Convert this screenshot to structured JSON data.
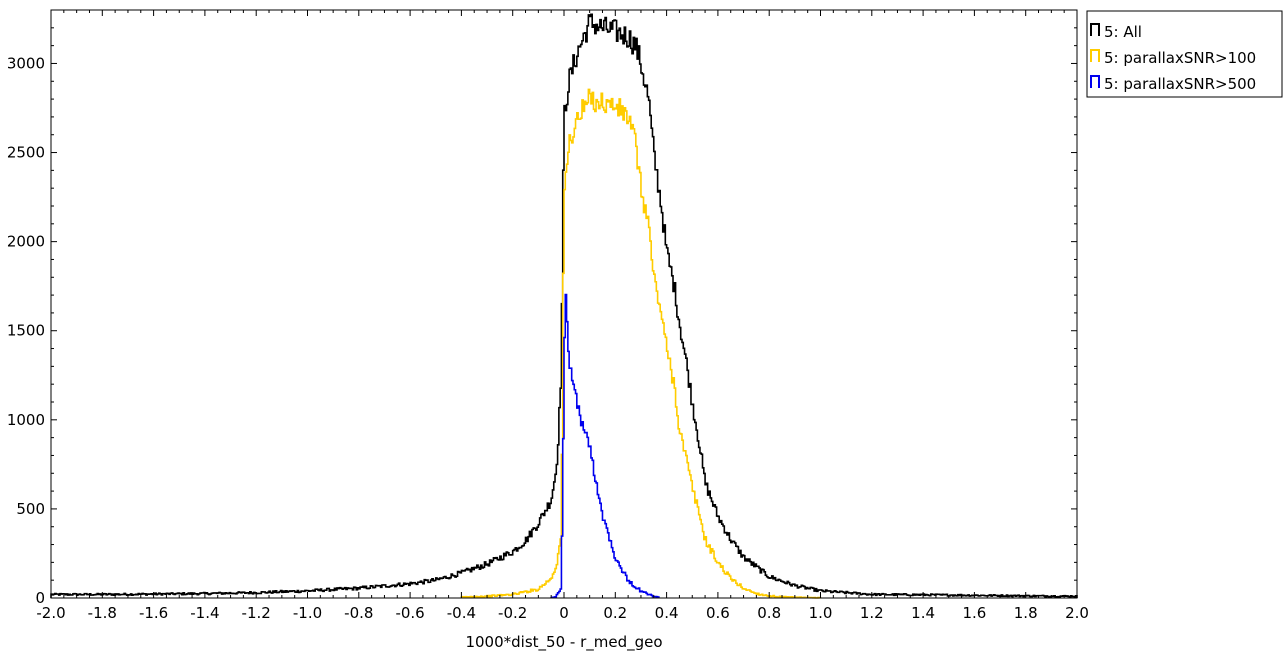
{
  "chart_data": {
    "type": "histogram",
    "xlabel": "1000*dist_50 - r_med_geo",
    "ylabel": "",
    "xlim": [
      -2.0,
      2.0
    ],
    "ylim": [
      0,
      3300
    ],
    "xticks": [
      -2.0,
      -1.8,
      -1.6,
      -1.4,
      -1.2,
      -1.0,
      -0.8,
      -0.6,
      -0.4,
      -0.2,
      0,
      0.2,
      0.4,
      0.6,
      0.8,
      1.0,
      1.2,
      1.4,
      1.6,
      1.8,
      2.0
    ],
    "xtick_labels": [
      "-2.0",
      "-1.8",
      "-1.6",
      "-1.4",
      "-1.2",
      "-1.0",
      "-0.8",
      "-0.6",
      "-0.4",
      "-0.2",
      "0",
      "0.2",
      "0.4",
      "0.6",
      "0.8",
      "1.0",
      "1.2",
      "1.4",
      "1.6",
      "1.8",
      "2.0"
    ],
    "yticks": [
      0,
      500,
      1000,
      1500,
      2000,
      2500,
      3000
    ],
    "ytick_labels": [
      "0",
      "500",
      "1000",
      "1500",
      "2000",
      "2500",
      "3000"
    ],
    "grid": false,
    "legend_position": "outside-top-right",
    "series": [
      {
        "name": "5: All",
        "color": "#000000",
        "x": [
          -2.0,
          -1.8,
          -1.6,
          -1.4,
          -1.2,
          -1.0,
          -0.8,
          -0.6,
          -0.5,
          -0.4,
          -0.3,
          -0.2,
          -0.15,
          -0.1,
          -0.05,
          -0.03,
          -0.02,
          -0.01,
          0.0,
          0.02,
          0.05,
          0.1,
          0.15,
          0.2,
          0.25,
          0.28,
          0.3,
          0.33,
          0.35,
          0.38,
          0.4,
          0.43,
          0.45,
          0.48,
          0.5,
          0.53,
          0.55,
          0.6,
          0.65,
          0.7,
          0.8,
          0.9,
          1.0,
          1.1,
          1.2,
          1.4,
          1.6,
          1.8,
          2.0
        ],
        "y": [
          20,
          20,
          22,
          25,
          30,
          40,
          55,
          80,
          100,
          140,
          190,
          260,
          320,
          420,
          550,
          720,
          950,
          1300,
          2700,
          2900,
          3050,
          3230,
          3200,
          3180,
          3150,
          3100,
          3000,
          2800,
          2500,
          2200,
          1950,
          1750,
          1550,
          1300,
          1100,
          850,
          650,
          460,
          330,
          230,
          120,
          70,
          40,
          30,
          20,
          18,
          15,
          12,
          10
        ]
      },
      {
        "name": "5: parallaxSNR>100",
        "color": "#ffcc00",
        "x": [
          -0.4,
          -0.3,
          -0.2,
          -0.1,
          -0.05,
          -0.03,
          -0.01,
          0.0,
          0.02,
          0.05,
          0.1,
          0.15,
          0.2,
          0.25,
          0.28,
          0.3,
          0.33,
          0.35,
          0.38,
          0.4,
          0.43,
          0.45,
          0.48,
          0.5,
          0.53,
          0.55,
          0.6,
          0.65,
          0.7,
          0.75,
          0.8,
          0.85,
          0.9,
          0.95,
          1.0
        ],
        "y": [
          5,
          10,
          20,
          50,
          110,
          180,
          350,
          2250,
          2550,
          2680,
          2800,
          2780,
          2760,
          2700,
          2550,
          2300,
          2100,
          1800,
          1600,
          1400,
          1200,
          950,
          760,
          620,
          460,
          330,
          200,
          110,
          55,
          25,
          12,
          6,
          4,
          2,
          1
        ]
      },
      {
        "name": "5: parallaxSNR>500",
        "color": "#0000ee",
        "x": [
          -0.05,
          -0.03,
          -0.01,
          0.0,
          0.005,
          0.01,
          0.02,
          0.03,
          0.05,
          0.07,
          0.1,
          0.13,
          0.15,
          0.18,
          0.2,
          0.23,
          0.25,
          0.28,
          0.3,
          0.33,
          0.35,
          0.37
        ],
        "y": [
          2,
          10,
          60,
          1150,
          1750,
          1600,
          1350,
          1250,
          1100,
          980,
          850,
          620,
          470,
          330,
          230,
          150,
          100,
          60,
          40,
          20,
          10,
          3
        ]
      }
    ]
  },
  "legend": {
    "items": [
      "5: All",
      "5: parallaxSNR>100",
      "5: parallaxSNR>500"
    ]
  }
}
